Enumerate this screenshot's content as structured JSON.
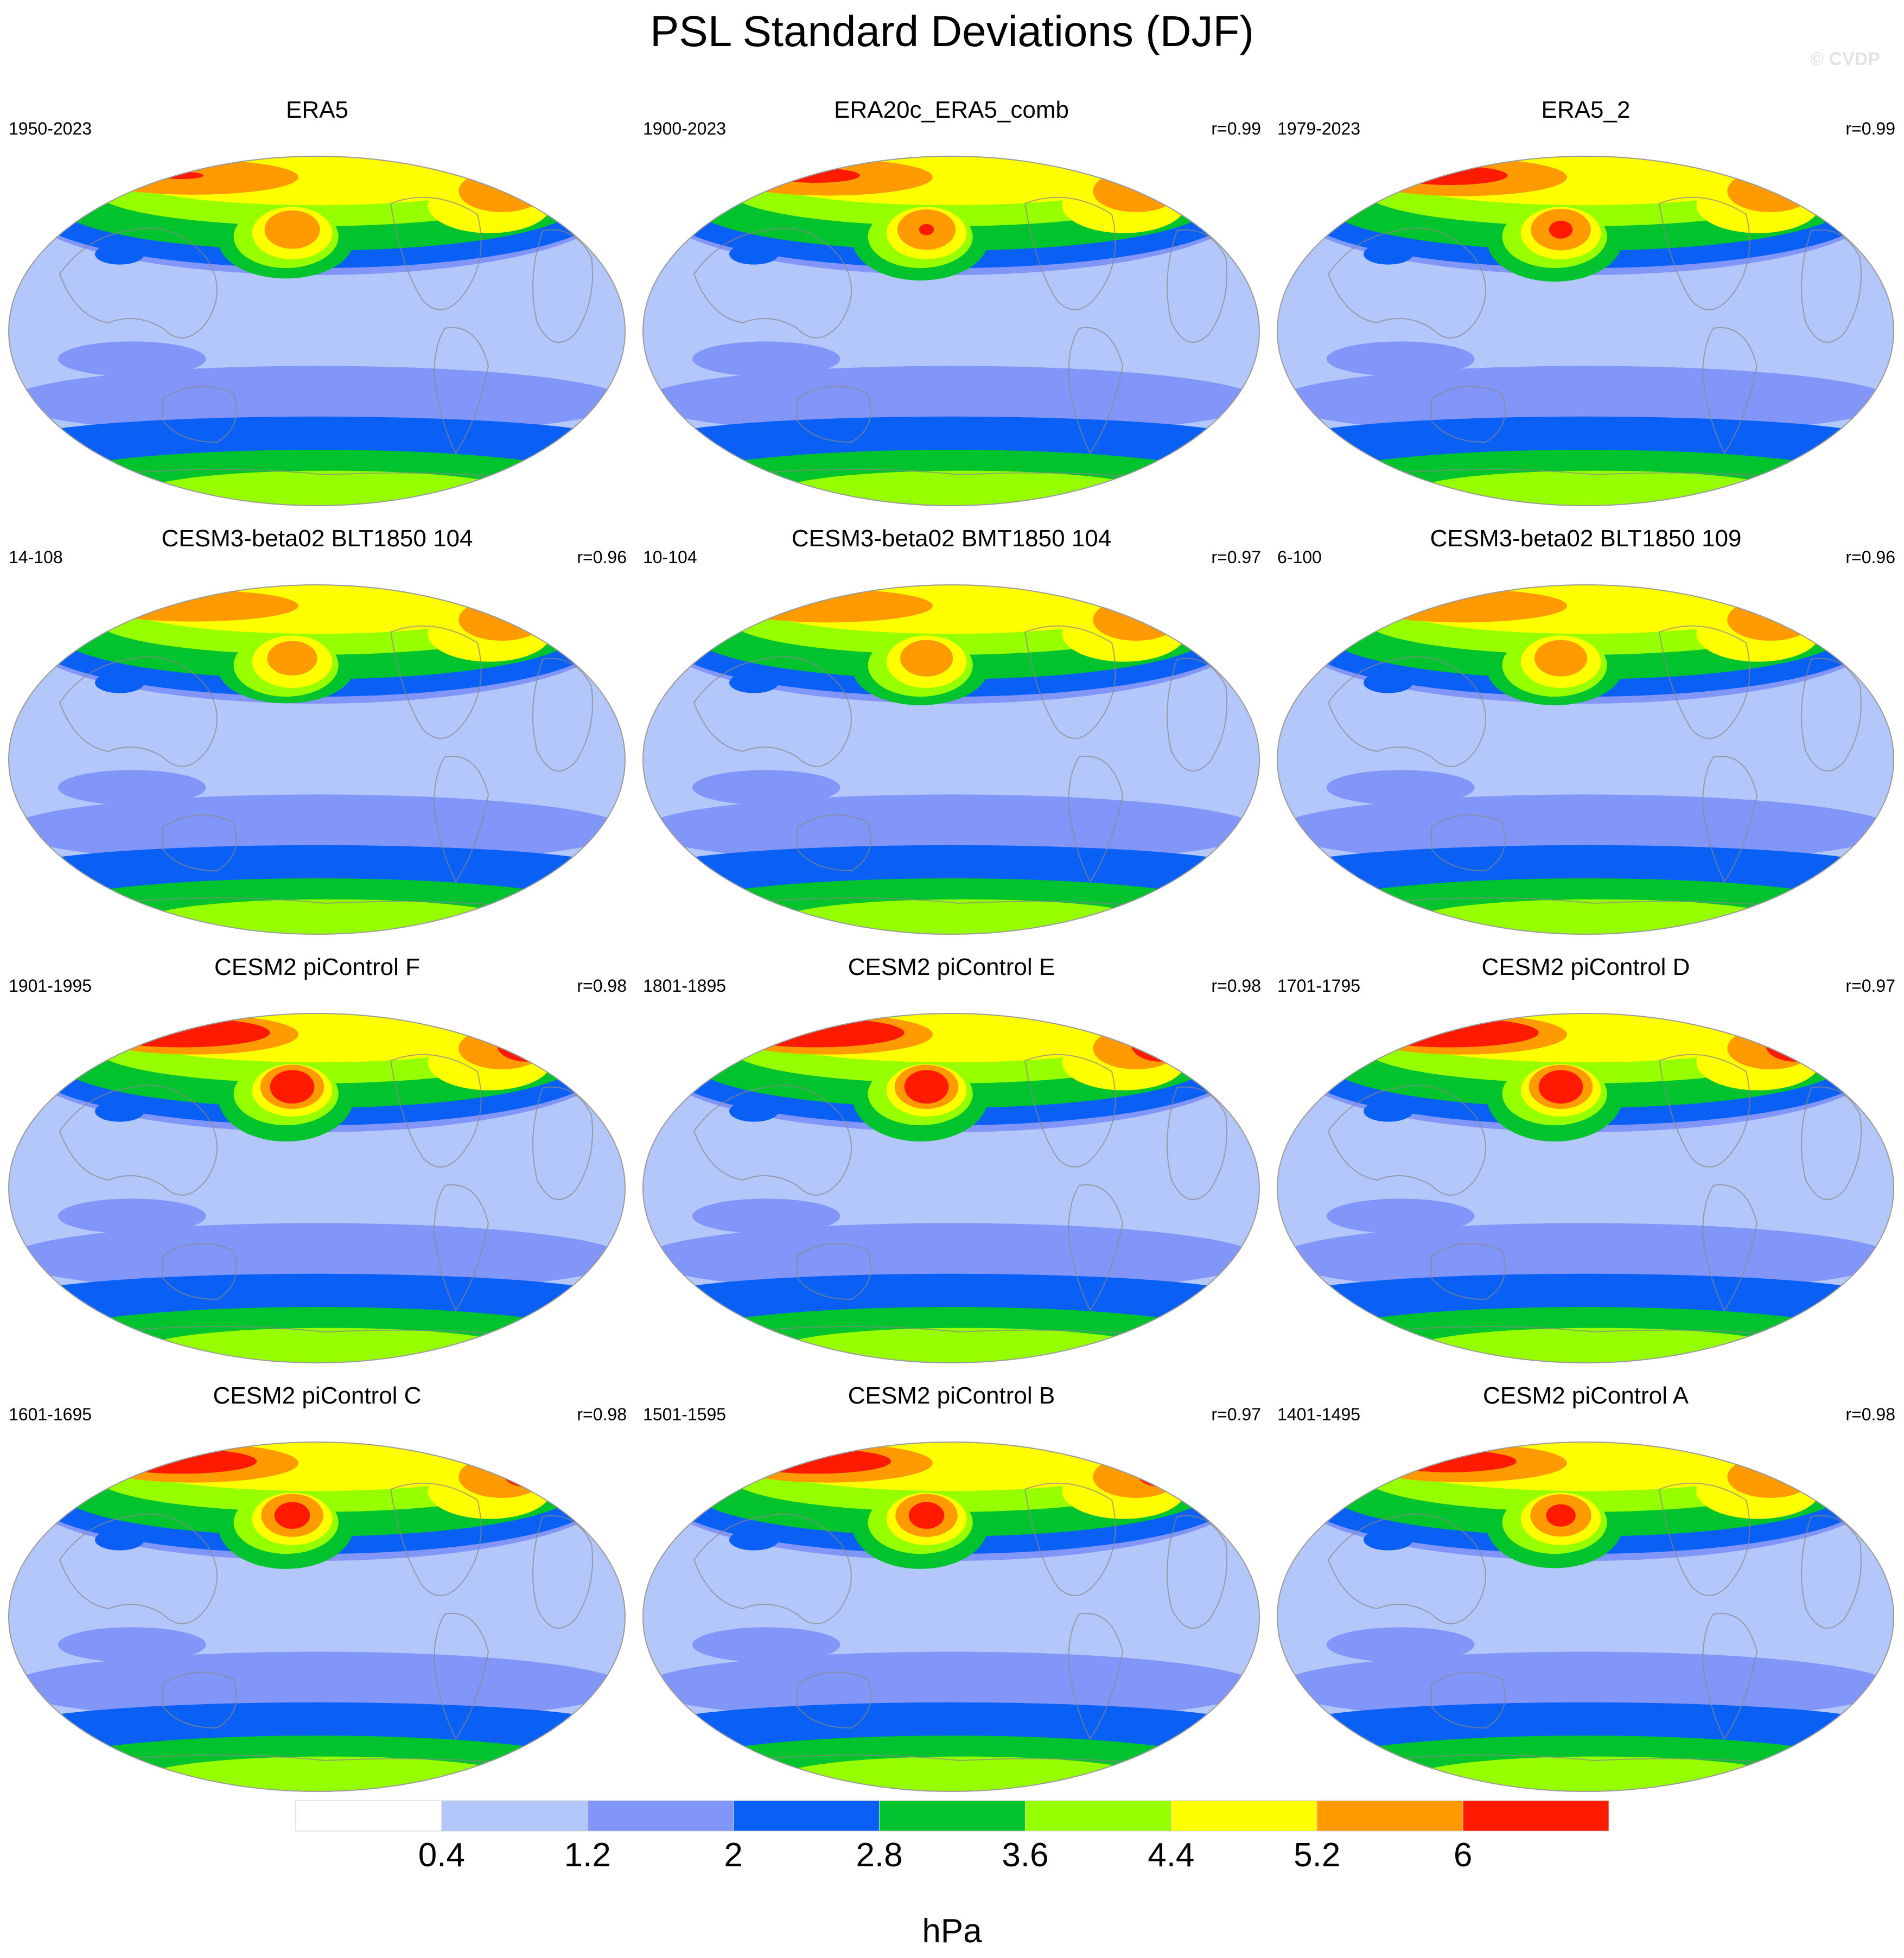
{
  "figure": {
    "title": "PSL Standard Deviations (DJF)",
    "watermark": "© CVDP"
  },
  "colors": {
    "levels": [
      "#ffffff",
      "#b4c7fa",
      "#8296fa",
      "#0a5ff5",
      "#00c32d",
      "#96ff00",
      "#ffff00",
      "#ff9b00",
      "#ff1a00"
    ],
    "land_outline": "#888888",
    "frame": "#9a9a9a"
  },
  "panels": [
    {
      "title": "ERA5",
      "period": "1950-2023",
      "corr": "",
      "intensity": 1.0
    },
    {
      "title": "ERA20c_ERA5_comb",
      "period": "1900-2023",
      "corr": "r=0.99",
      "intensity": 1.05
    },
    {
      "title": "ERA5_2",
      "period": "1979-2023",
      "corr": "r=0.99",
      "intensity": 1.08
    },
    {
      "title": "CESM3-beta02 BLT1850 104",
      "period": "14-108",
      "corr": "r=0.96",
      "intensity": 0.9
    },
    {
      "title": "CESM3-beta02 BMT1850 104",
      "period": "10-104",
      "corr": "r=0.97",
      "intensity": 0.95
    },
    {
      "title": "CESM3-beta02 BLT1850 109",
      "period": "6-100",
      "corr": "r=0.96",
      "intensity": 0.95
    },
    {
      "title": "CESM2 piControl F",
      "period": "1901-1995",
      "corr": "r=0.98",
      "intensity": 1.15
    },
    {
      "title": "CESM2 piControl E",
      "period": "1801-1895",
      "corr": "r=0.98",
      "intensity": 1.15
    },
    {
      "title": "CESM2 piControl D",
      "period": "1701-1795",
      "corr": "r=0.97",
      "intensity": 1.15
    },
    {
      "title": "CESM2 piControl C",
      "period": "1601-1695",
      "corr": "r=0.98",
      "intensity": 1.12
    },
    {
      "title": "CESM2 piControl B",
      "period": "1501-1595",
      "corr": "r=0.97",
      "intensity": 1.12
    },
    {
      "title": "CESM2 piControl A",
      "period": "1401-1495",
      "corr": "r=0.98",
      "intensity": 1.1
    }
  ],
  "chart_data": {
    "type": "heatmap",
    "title": "PSL Standard Deviations (DJF)",
    "colorbar": {
      "ticks": [
        "0.4",
        "1.2",
        "2",
        "2.8",
        "3.6",
        "4.4",
        "5.2",
        "6"
      ],
      "levels": [
        0.4,
        1.2,
        2.0,
        2.8,
        3.6,
        4.4,
        5.2,
        6.0
      ],
      "units": "hPa"
    }
  }
}
